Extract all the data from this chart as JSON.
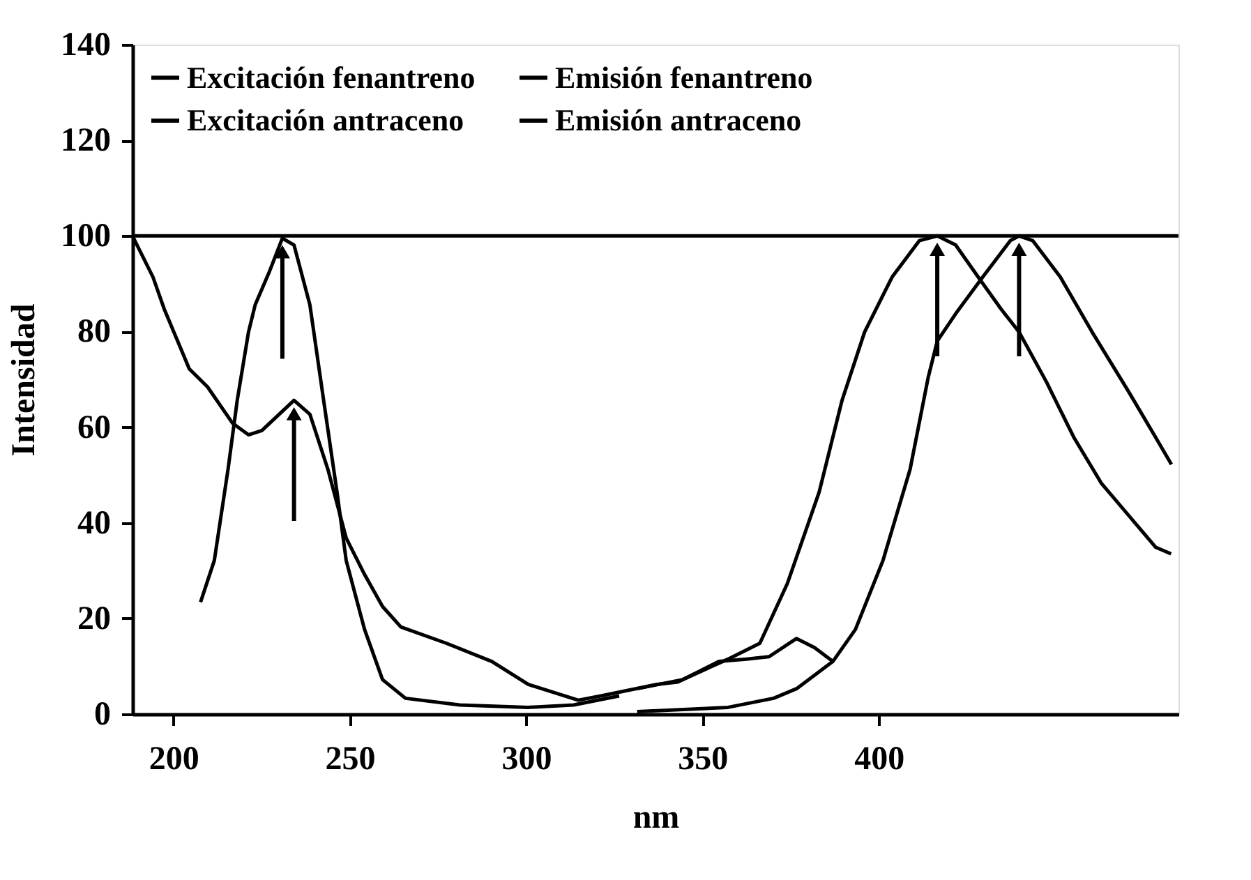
{
  "chart_data": {
    "type": "line",
    "xlabel": "nm",
    "ylabel": "Intensidad",
    "xlim": [
      188.4,
      485
    ],
    "xticks": [
      200,
      250,
      300,
      350,
      400
    ],
    "ylim": [
      0,
      140
    ],
    "yticks": [
      0,
      20,
      40,
      60,
      80,
      100,
      120,
      140
    ],
    "grid": false,
    "legend": "top left",
    "marker": "none",
    "line_style": "solid",
    "ref_lines": [
      {
        "axis": "y",
        "value": 100,
        "color": "#000000"
      }
    ],
    "series": [
      {
        "name": "Excitación fenantreno",
        "color": "#000000",
        "x": [
          188.4,
          194.2,
          197.4,
          204.5,
          209.7,
          216.8,
          221.3,
          225.1,
          234.2,
          238.7,
          243.8,
          249,
          254.2,
          259.3,
          264.5,
          277.4,
          290.3,
          300.6,
          314.8,
          321.2,
          337.1,
          343.1,
          354.7,
          362.5,
          368.9,
          376.7,
          381.8,
          387
        ],
        "values": [
          100,
          91.4,
          84.7,
          72.2,
          68.4,
          60.8,
          58.4,
          59.3,
          65.6,
          62.7,
          51.2,
          36.8,
          29.2,
          22.5,
          18.2,
          14.8,
          11,
          6.2,
          2.9,
          3.8,
          6.2,
          6.7,
          11,
          11.5,
          12,
          15.8,
          13.9,
          11
        ]
      },
      {
        "name": "Excitación antraceno",
        "color": "#000000",
        "x": [
          207.7,
          211.6,
          215.5,
          218.1,
          221.3,
          223.2,
          227.1,
          230.9,
          234.2,
          238.7,
          242.6,
          246.4,
          249,
          254.2,
          259.3,
          265.8,
          281.2,
          300.6,
          313.5,
          326.4
        ],
        "values": [
          23.4,
          32.1,
          51.2,
          65.6,
          79.9,
          85.6,
          92.3,
          99.5,
          98.1,
          85.6,
          65.6,
          46.4,
          32.1,
          17.7,
          7.2,
          3.3,
          1.9,
          1.4,
          1.9,
          3.8
        ]
      },
      {
        "name": "Emisión fenantreno",
        "color": "#000000",
        "x": [
          331.5,
          344.4,
          357.3,
          366.3,
          374.1,
          383.1,
          389.6,
          396,
          403.8,
          411.5,
          416.6,
          421.8,
          428.2,
          434.7,
          439.8,
          447.6,
          455.3,
          463.1,
          470.8,
          478.5,
          482.9
        ],
        "values": [
          5.3,
          7.2,
          11.5,
          14.8,
          27.3,
          46.4,
          65.6,
          79.9,
          91.4,
          99,
          100,
          98.1,
          91.4,
          84.7,
          79.9,
          69.4,
          57.9,
          48.3,
          41.6,
          34.9,
          33.5
        ]
      },
      {
        "name": "Emisión antraceno",
        "color": "#000000",
        "x": [
          331.5,
          357.3,
          370.2,
          376.7,
          387,
          393.4,
          401.2,
          408.9,
          414,
          416.6,
          421.8,
          429.5,
          437.3,
          439.8,
          443.7,
          451.5,
          460.5,
          470.8,
          478.5,
          483
        ],
        "values": [
          0.5,
          1.4,
          3.3,
          5.3,
          11,
          17.7,
          32.1,
          51.2,
          70.3,
          78,
          83.7,
          91.4,
          99,
          100,
          99,
          91.4,
          79.9,
          67.5,
          57.9,
          52.2
        ]
      }
    ]
  }
}
